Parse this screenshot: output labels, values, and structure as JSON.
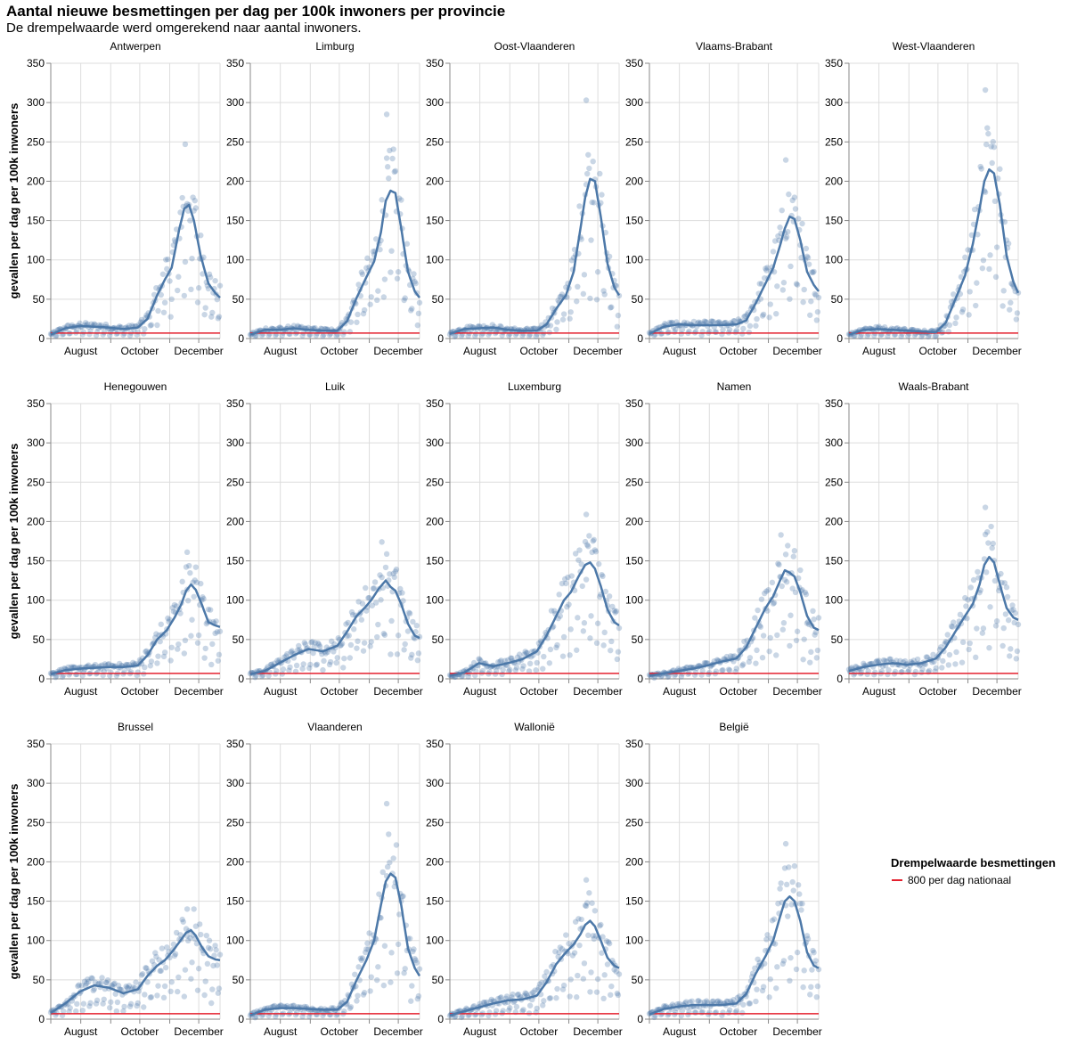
{
  "header": {
    "title": "Aantal nieuwe besmettingen per dag per 100k inwoners per provincie",
    "subtitle": "De drempelwaarde werd omgerekend naar aantal inwoners."
  },
  "legend": {
    "title": "Drempelwaarde besmettingen",
    "item": "800 per dag nationaal"
  },
  "colors": {
    "line": "#4c78a8",
    "points": "#4c78a8",
    "threshold": "#e4202e",
    "grid": "#dddddd",
    "axis": "#888888"
  },
  "chart_data": {
    "type": "scatter",
    "ylabel": "gevallen per dag per 100k inwoners",
    "xlabel": "",
    "ylim": [
      0,
      350
    ],
    "yticks": [
      0,
      50,
      100,
      150,
      200,
      250,
      300,
      350
    ],
    "xlim_days": [
      0,
      175
    ],
    "x_start_date": "2020-07-01",
    "xticks": [
      {
        "label": "August",
        "day": 31
      },
      {
        "label": "October",
        "day": 92
      },
      {
        "label": "December",
        "day": 153
      }
    ],
    "x_gridlines_days": [
      0,
      31,
      62,
      92,
      123,
      153
    ],
    "threshold": 7,
    "grid": true,
    "legend_position": "right",
    "facets": [
      {
        "name": "Antwerpen",
        "line": [
          [
            0,
            5
          ],
          [
            15,
            13
          ],
          [
            30,
            16
          ],
          [
            45,
            15
          ],
          [
            60,
            14
          ],
          [
            75,
            12
          ],
          [
            90,
            14
          ],
          [
            100,
            25
          ],
          [
            110,
            55
          ],
          [
            118,
            75
          ],
          [
            125,
            90
          ],
          [
            133,
            140
          ],
          [
            138,
            165
          ],
          [
            143,
            170
          ],
          [
            148,
            150
          ],
          [
            155,
            105
          ],
          [
            163,
            70
          ],
          [
            170,
            58
          ],
          [
            175,
            52
          ]
        ],
        "peak": 247
      },
      {
        "name": "Limburg",
        "line": [
          [
            0,
            5
          ],
          [
            15,
            11
          ],
          [
            30,
            11
          ],
          [
            45,
            13
          ],
          [
            60,
            11
          ],
          [
            75,
            10
          ],
          [
            90,
            10
          ],
          [
            100,
            22
          ],
          [
            110,
            52
          ],
          [
            120,
            78
          ],
          [
            128,
            98
          ],
          [
            135,
            135
          ],
          [
            140,
            175
          ],
          [
            145,
            188
          ],
          [
            150,
            185
          ],
          [
            156,
            140
          ],
          [
            163,
            85
          ],
          [
            170,
            60
          ],
          [
            175,
            52
          ]
        ],
        "peak": 285
      },
      {
        "name": "Oost-Vlaanderen",
        "line": [
          [
            0,
            6
          ],
          [
            15,
            12
          ],
          [
            30,
            13
          ],
          [
            45,
            14
          ],
          [
            60,
            11
          ],
          [
            75,
            10
          ],
          [
            90,
            10
          ],
          [
            100,
            18
          ],
          [
            110,
            38
          ],
          [
            120,
            55
          ],
          [
            128,
            85
          ],
          [
            135,
            140
          ],
          [
            140,
            180
          ],
          [
            145,
            203
          ],
          [
            150,
            200
          ],
          [
            156,
            155
          ],
          [
            163,
            95
          ],
          [
            170,
            65
          ],
          [
            175,
            55
          ]
        ],
        "peak": 303
      },
      {
        "name": "Vlaams-Brabant",
        "line": [
          [
            0,
            6
          ],
          [
            15,
            15
          ],
          [
            30,
            18
          ],
          [
            45,
            17
          ],
          [
            60,
            17
          ],
          [
            75,
            17
          ],
          [
            90,
            18
          ],
          [
            100,
            23
          ],
          [
            110,
            45
          ],
          [
            120,
            70
          ],
          [
            128,
            90
          ],
          [
            135,
            118
          ],
          [
            140,
            140
          ],
          [
            145,
            155
          ],
          [
            150,
            152
          ],
          [
            156,
            125
          ],
          [
            163,
            85
          ],
          [
            170,
            68
          ],
          [
            175,
            60
          ]
        ],
        "peak": 227
      },
      {
        "name": "West-Vlaanderen",
        "line": [
          [
            0,
            5
          ],
          [
            15,
            11
          ],
          [
            30,
            12
          ],
          [
            45,
            11
          ],
          [
            60,
            10
          ],
          [
            75,
            9
          ],
          [
            90,
            8
          ],
          [
            100,
            20
          ],
          [
            110,
            50
          ],
          [
            120,
            80
          ],
          [
            128,
            120
          ],
          [
            135,
            165
          ],
          [
            140,
            200
          ],
          [
            145,
            215
          ],
          [
            150,
            210
          ],
          [
            156,
            170
          ],
          [
            163,
            105
          ],
          [
            170,
            72
          ],
          [
            175,
            58
          ]
        ],
        "peak": 316
      },
      {
        "name": "Henegouwen",
        "line": [
          [
            0,
            6
          ],
          [
            15,
            11
          ],
          [
            30,
            13
          ],
          [
            45,
            14
          ],
          [
            60,
            15
          ],
          [
            75,
            15
          ],
          [
            90,
            17
          ],
          [
            100,
            30
          ],
          [
            110,
            50
          ],
          [
            120,
            62
          ],
          [
            128,
            78
          ],
          [
            135,
            95
          ],
          [
            140,
            112
          ],
          [
            145,
            120
          ],
          [
            150,
            113
          ],
          [
            156,
            95
          ],
          [
            163,
            72
          ],
          [
            170,
            68
          ],
          [
            175,
            66
          ]
        ],
        "peak": 161
      },
      {
        "name": "Luik",
        "line": [
          [
            0,
            6
          ],
          [
            15,
            10
          ],
          [
            30,
            20
          ],
          [
            45,
            30
          ],
          [
            60,
            38
          ],
          [
            75,
            35
          ],
          [
            90,
            42
          ],
          [
            100,
            60
          ],
          [
            110,
            80
          ],
          [
            118,
            90
          ],
          [
            125,
            100
          ],
          [
            133,
            115
          ],
          [
            140,
            125
          ],
          [
            145,
            117
          ],
          [
            150,
            112
          ],
          [
            156,
            95
          ],
          [
            163,
            70
          ],
          [
            170,
            55
          ],
          [
            175,
            52
          ]
        ],
        "peak": 174
      },
      {
        "name": "Luxemburg",
        "line": [
          [
            0,
            4
          ],
          [
            15,
            8
          ],
          [
            30,
            20
          ],
          [
            45,
            16
          ],
          [
            60,
            20
          ],
          [
            75,
            25
          ],
          [
            90,
            35
          ],
          [
            100,
            55
          ],
          [
            110,
            80
          ],
          [
            118,
            100
          ],
          [
            125,
            110
          ],
          [
            133,
            130
          ],
          [
            140,
            145
          ],
          [
            145,
            148
          ],
          [
            150,
            140
          ],
          [
            156,
            118
          ],
          [
            163,
            88
          ],
          [
            170,
            72
          ],
          [
            175,
            68
          ]
        ],
        "peak": 209
      },
      {
        "name": "Namen",
        "line": [
          [
            0,
            4
          ],
          [
            15,
            7
          ],
          [
            30,
            10
          ],
          [
            45,
            13
          ],
          [
            60,
            17
          ],
          [
            75,
            22
          ],
          [
            90,
            26
          ],
          [
            100,
            40
          ],
          [
            110,
            65
          ],
          [
            120,
            90
          ],
          [
            128,
            105
          ],
          [
            135,
            125
          ],
          [
            140,
            138
          ],
          [
            145,
            135
          ],
          [
            150,
            130
          ],
          [
            156,
            110
          ],
          [
            163,
            80
          ],
          [
            170,
            65
          ],
          [
            175,
            62
          ]
        ],
        "peak": 183
      },
      {
        "name": "Waals-Brabant",
        "line": [
          [
            0,
            10
          ],
          [
            15,
            15
          ],
          [
            30,
            18
          ],
          [
            45,
            20
          ],
          [
            60,
            18
          ],
          [
            75,
            20
          ],
          [
            90,
            26
          ],
          [
            100,
            40
          ],
          [
            110,
            60
          ],
          [
            120,
            80
          ],
          [
            128,
            95
          ],
          [
            135,
            120
          ],
          [
            140,
            145
          ],
          [
            145,
            155
          ],
          [
            150,
            148
          ],
          [
            156,
            120
          ],
          [
            163,
            90
          ],
          [
            170,
            78
          ],
          [
            175,
            75
          ]
        ],
        "peak": 218
      },
      {
        "name": "Brussel",
        "line": [
          [
            0,
            8
          ],
          [
            15,
            20
          ],
          [
            30,
            35
          ],
          [
            45,
            43
          ],
          [
            60,
            40
          ],
          [
            75,
            33
          ],
          [
            90,
            38
          ],
          [
            100,
            55
          ],
          [
            110,
            68
          ],
          [
            118,
            75
          ],
          [
            125,
            85
          ],
          [
            133,
            98
          ],
          [
            140,
            110
          ],
          [
            145,
            113
          ],
          [
            150,
            106
          ],
          [
            156,
            92
          ],
          [
            163,
            80
          ],
          [
            170,
            76
          ],
          [
            175,
            75
          ]
        ],
        "peak": 140
      },
      {
        "name": "Vlaanderen",
        "line": [
          [
            0,
            5
          ],
          [
            15,
            12
          ],
          [
            30,
            14
          ],
          [
            45,
            14
          ],
          [
            60,
            13
          ],
          [
            75,
            12
          ],
          [
            90,
            12
          ],
          [
            100,
            22
          ],
          [
            110,
            50
          ],
          [
            120,
            75
          ],
          [
            128,
            100
          ],
          [
            135,
            145
          ],
          [
            140,
            175
          ],
          [
            145,
            185
          ],
          [
            150,
            180
          ],
          [
            156,
            145
          ],
          [
            163,
            90
          ],
          [
            170,
            65
          ],
          [
            175,
            55
          ]
        ],
        "peak": 274
      },
      {
        "name": "Wallonië",
        "line": [
          [
            0,
            5
          ],
          [
            15,
            10
          ],
          [
            30,
            15
          ],
          [
            45,
            20
          ],
          [
            60,
            24
          ],
          [
            75,
            25
          ],
          [
            90,
            30
          ],
          [
            100,
            47
          ],
          [
            110,
            70
          ],
          [
            120,
            85
          ],
          [
            128,
            95
          ],
          [
            135,
            108
          ],
          [
            140,
            120
          ],
          [
            145,
            125
          ],
          [
            150,
            118
          ],
          [
            156,
            100
          ],
          [
            163,
            78
          ],
          [
            170,
            68
          ],
          [
            175,
            65
          ]
        ],
        "peak": 177
      },
      {
        "name": "België",
        "line": [
          [
            0,
            6
          ],
          [
            15,
            13
          ],
          [
            30,
            16
          ],
          [
            45,
            18
          ],
          [
            60,
            18
          ],
          [
            75,
            18
          ],
          [
            90,
            20
          ],
          [
            100,
            32
          ],
          [
            110,
            58
          ],
          [
            120,
            80
          ],
          [
            128,
            100
          ],
          [
            135,
            130
          ],
          [
            140,
            150
          ],
          [
            145,
            156
          ],
          [
            150,
            150
          ],
          [
            156,
            125
          ],
          [
            163,
            85
          ],
          [
            170,
            68
          ],
          [
            175,
            65
          ]
        ],
        "peak": 223
      }
    ]
  }
}
